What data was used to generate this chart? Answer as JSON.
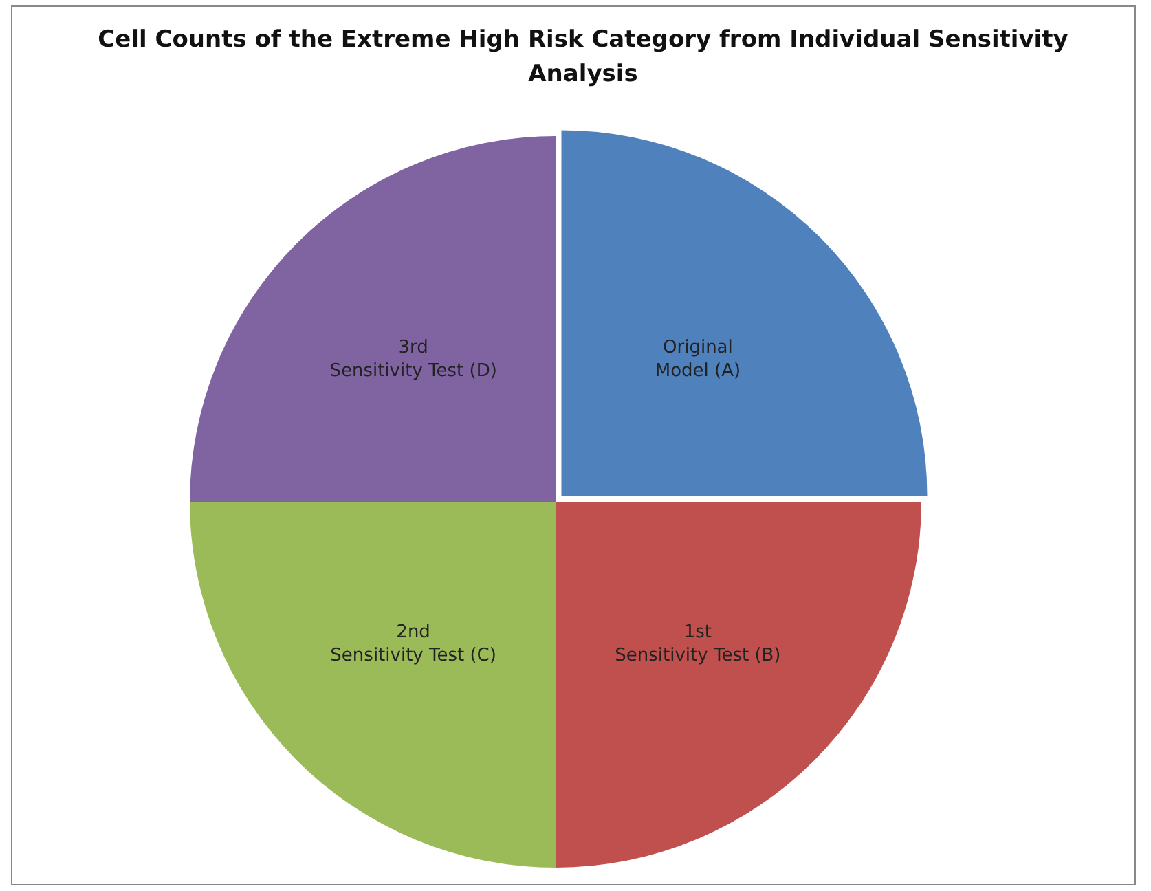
{
  "chart_data": {
    "type": "pie",
    "title": "Cell Counts of the Extreme High Risk Category from Individual Sensitivity Analysis",
    "categories": [
      "Original Model (A)",
      "1st Sensitivity Test (B)",
      "2nd Sensitivity Test (C)",
      "3rd Sensitivity Test (D)"
    ],
    "values": [
      25,
      25,
      25,
      25
    ],
    "colors": [
      "#4f81bd",
      "#c0504d",
      "#9bbb59",
      "#8064a2"
    ],
    "legend": false
  }
}
